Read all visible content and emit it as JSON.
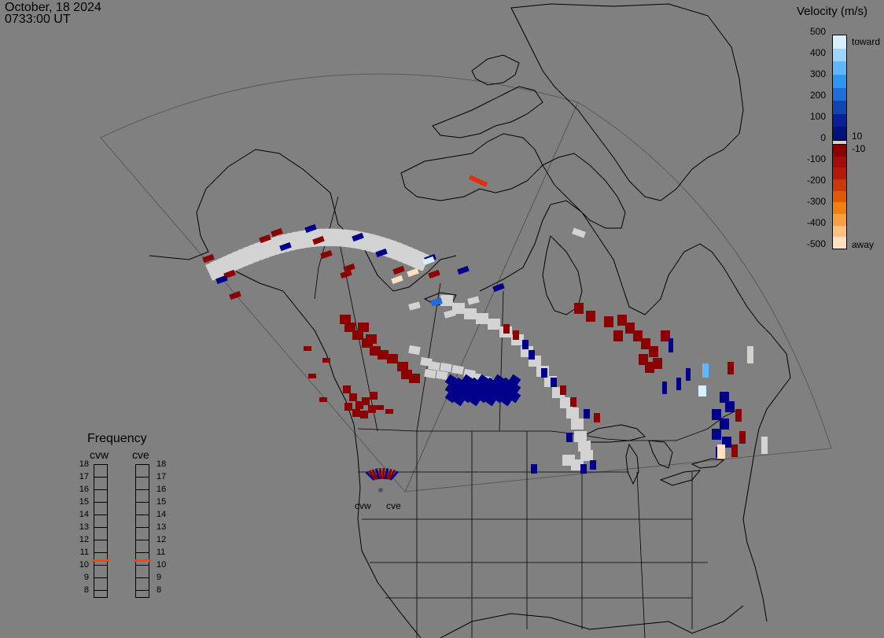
{
  "header": {
    "date": "October, 18 2024",
    "time": "0733:00 UT"
  },
  "velocity_legend": {
    "title": "Velocity (m/s)",
    "toward_label": "toward",
    "away_label": "away",
    "ticks": [
      "500",
      "400",
      "300",
      "200",
      "100",
      "0",
      "-100",
      "-200",
      "-300",
      "-400",
      "-500"
    ],
    "threshold_pos": "10",
    "threshold_neg": "-10",
    "colors_toward": [
      "#d7f0ff",
      "#9ad6ff",
      "#5fb8ff",
      "#2e96ef",
      "#1e6ed8",
      "#1046b0",
      "#0a1f9a",
      "#00117a"
    ],
    "colors_away": [
      "#8a0000",
      "#a00e0e",
      "#b21a0a",
      "#c83a08",
      "#e05a06",
      "#f08010",
      "#f8a040",
      "#ffc080",
      "#ffe0c0"
    ],
    "zero_color": "#d3d3d3"
  },
  "frequency_panel": {
    "title": "Frequency",
    "radars": [
      {
        "name": "cvw",
        "freq": 10.9
      },
      {
        "name": "cve",
        "freq": 10.9
      }
    ],
    "scale": [
      "18",
      "17",
      "16",
      "15",
      "14",
      "13",
      "12",
      "11",
      "10",
      "9",
      "8"
    ],
    "marker_color": "#ff4500"
  },
  "site_labels": {
    "cvw": "cvw",
    "cve": "cve"
  },
  "colors": {
    "background": "#808080",
    "gray_scatter": "#d3d3d3",
    "dark_red": "#8b0000",
    "dark_blue": "#00008b",
    "highlight_red": "#e03010"
  }
}
